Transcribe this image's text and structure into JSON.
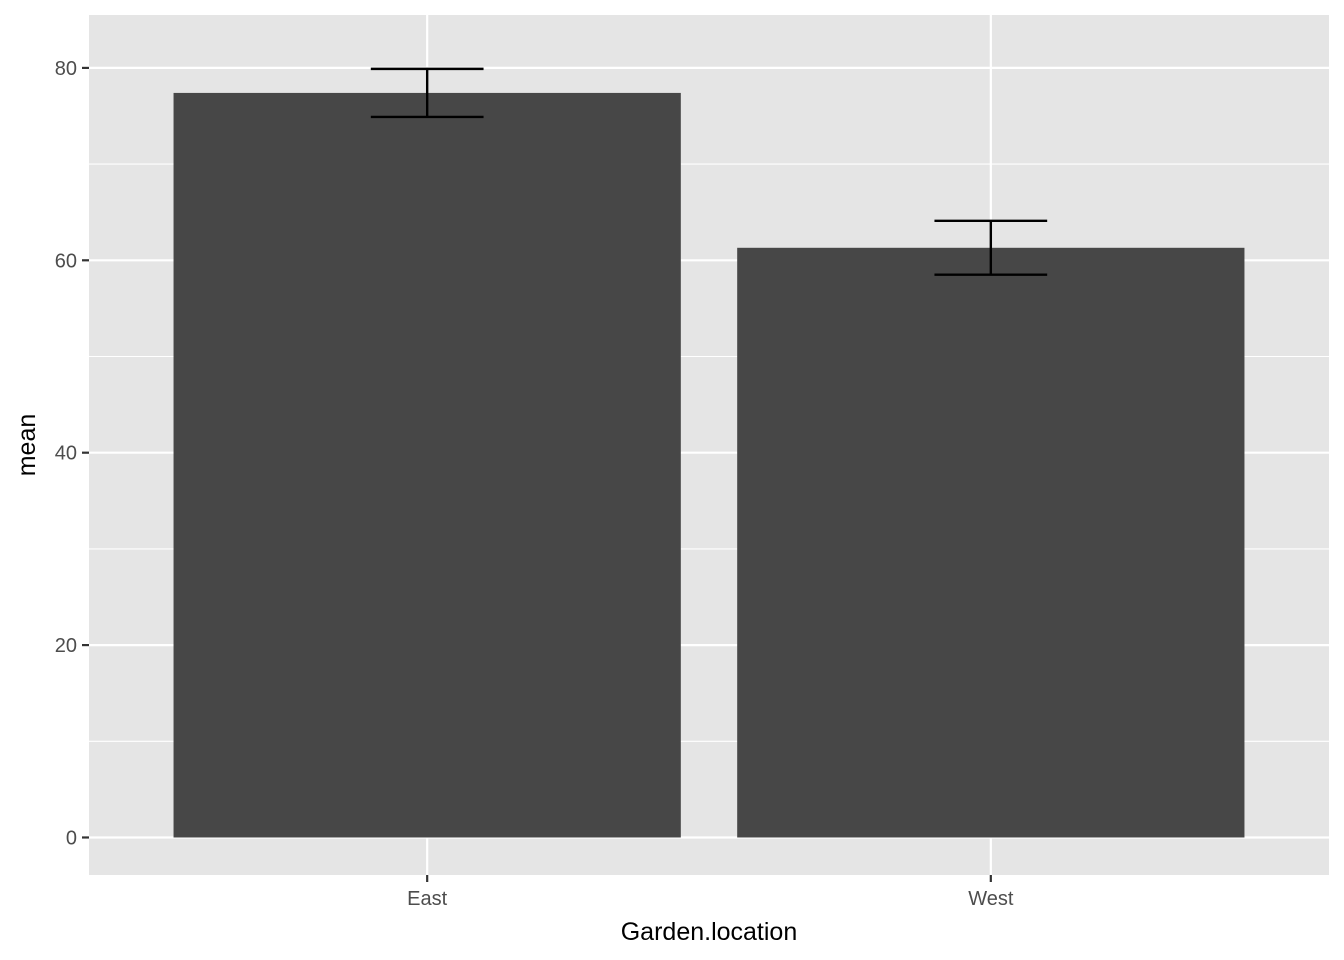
{
  "chart_data": {
    "type": "bar",
    "categories": [
      "East",
      "West"
    ],
    "values": [
      77.4,
      61.3
    ],
    "error_bars": [
      {
        "lower": 74.9,
        "upper": 79.9
      },
      {
        "lower": 58.5,
        "upper": 64.1
      }
    ],
    "ylim": [
      -3.9,
      85.5
    ],
    "yticks": [
      0,
      20,
      40,
      60,
      80
    ],
    "ytick_labels": [
      "0",
      "20",
      "40",
      "60",
      "80"
    ],
    "xlabel": "Garden.location",
    "ylabel": "mean",
    "grid": true,
    "colors": {
      "panel_background": "#e5e5e5",
      "bar_fill": "#474747",
      "grid": "#ffffff",
      "error_bar": "#000000",
      "tick_text": "#4d4d4d",
      "axis_title": "#000000"
    }
  }
}
